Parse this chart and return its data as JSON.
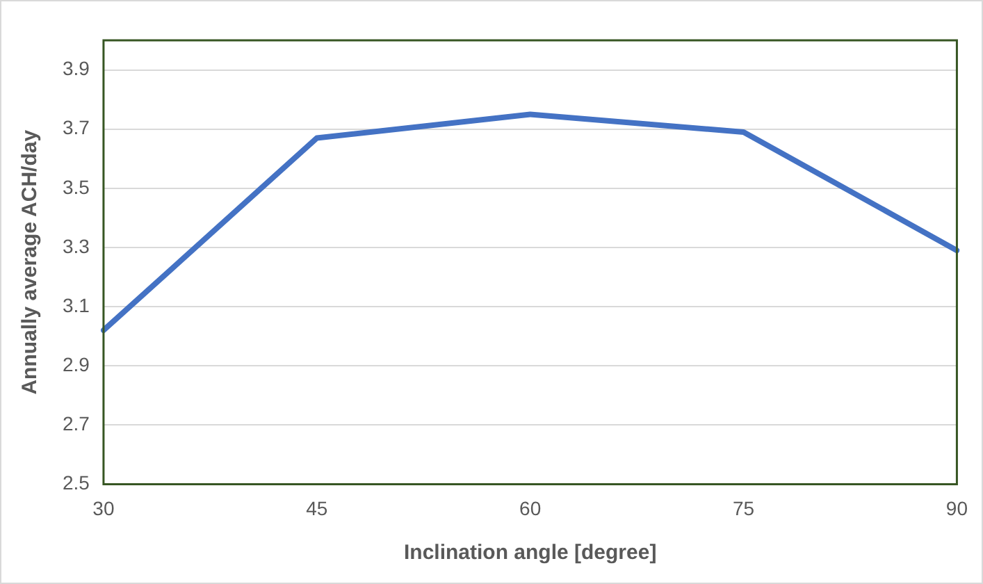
{
  "chart_data": {
    "type": "line",
    "xlabel": "Inclination angle [degree]",
    "ylabel": "Annually average ACH/day",
    "categories": [
      "30",
      "45",
      "60",
      "75",
      "90"
    ],
    "series": [
      {
        "color": "#4472c4",
        "values": [
          3.02,
          3.67,
          3.75,
          3.69,
          3.29
        ]
      }
    ],
    "ylim": [
      2.5,
      4.0
    ],
    "yticks": [
      2.5,
      2.7,
      2.9,
      3.1,
      3.3,
      3.5,
      3.7,
      3.9
    ],
    "grid": "y",
    "legend": false,
    "marker": "none",
    "line_style": "solid"
  }
}
